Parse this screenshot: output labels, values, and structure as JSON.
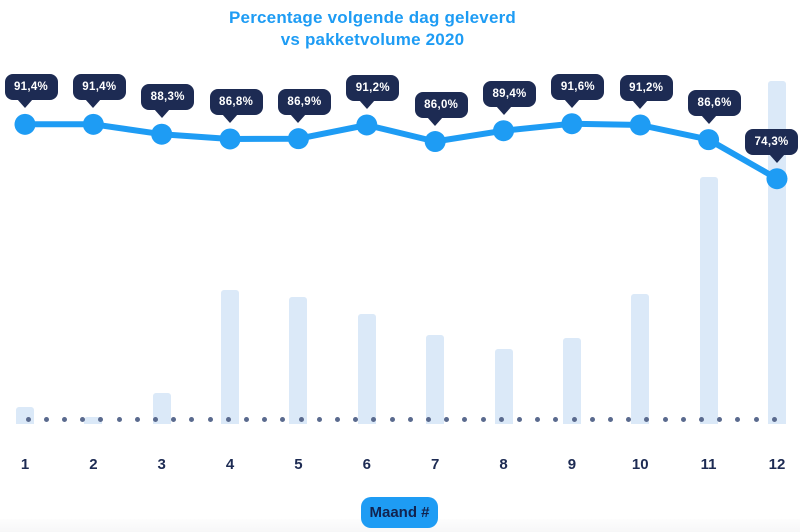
{
  "title": {
    "line1": "Percentage volgende dag geleverd",
    "line2": "vs pakketvolume 2020"
  },
  "x_axis": {
    "label": "Maand #",
    "ticks": [
      "1",
      "2",
      "3",
      "4",
      "5",
      "6",
      "7",
      "8",
      "9",
      "10",
      "11",
      "12"
    ]
  },
  "chart_data": {
    "type": "combo",
    "title": "Percentage volgende dag geleverd vs pakketvolume 2020",
    "xlabel": "Maand #",
    "legend": "none",
    "grid": "off",
    "categories": [
      1,
      2,
      3,
      4,
      5,
      6,
      7,
      8,
      9,
      10,
      11,
      12
    ],
    "series": [
      {
        "name": "Percentage volgende dag geleverd",
        "type": "line",
        "unit": "%",
        "values": [
          91.4,
          91.4,
          88.3,
          86.8,
          86.9,
          91.2,
          86.0,
          89.4,
          91.6,
          91.2,
          86.6,
          74.3
        ],
        "point_labels": [
          "91,4%",
          "91,4%",
          "88,3%",
          "86,8%",
          "86,9%",
          "91,2%",
          "86,0%",
          "89,4%",
          "91,6%",
          "91,2%",
          "86,6%",
          "74,3%"
        ]
      },
      {
        "name": "Pakketvolume 2020",
        "type": "bar",
        "unit": "relative volume (max month = 100)",
        "values": [
          5,
          2,
          9,
          39,
          37,
          32,
          26,
          22,
          25,
          38,
          72,
          100
        ]
      }
    ]
  },
  "colors": {
    "accent_blue": "#1E9CF4",
    "title_text": "#1E9CF4",
    "line": "#1E9CF4",
    "marker": "#1E9CF4",
    "bar_fill": "#DBE9F8",
    "badge_bg": "#1D2B53",
    "badge_text": "#FFFFFF",
    "axis_text": "#1D2B53",
    "dotted_line": "#5A6A8E",
    "pill_bg": "#1E9CF4",
    "pill_text": "#12234F"
  }
}
